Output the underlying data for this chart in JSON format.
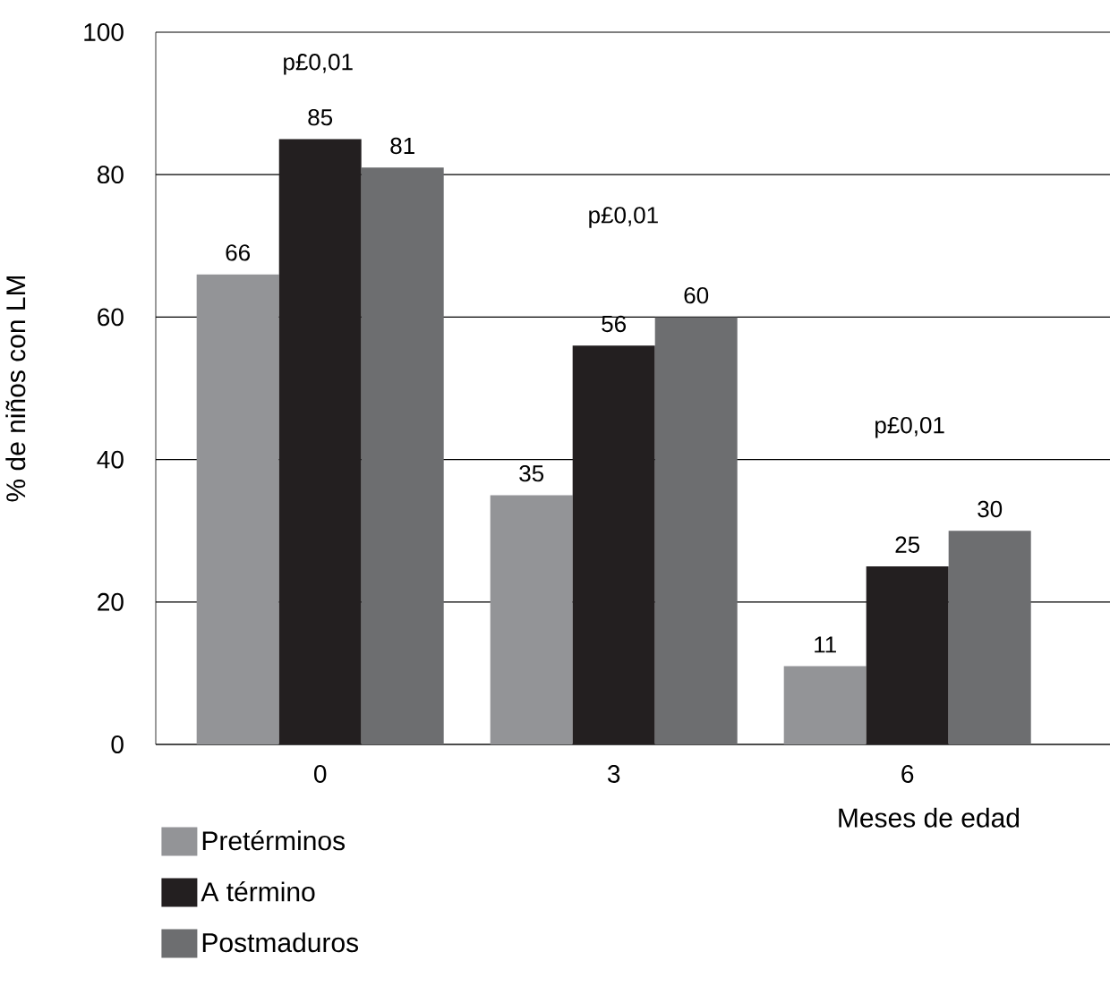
{
  "chart_data": {
    "type": "bar",
    "ylabel": "% de niños con LM",
    "xlabel": "Meses de edad",
    "categories": [
      "0",
      "3",
      "6"
    ],
    "series": [
      {
        "name": "Pretérminos",
        "color": "#939497",
        "values": [
          66,
          35,
          11
        ]
      },
      {
        "name": "A término",
        "color": "#231f20",
        "values": [
          85,
          56,
          25
        ]
      },
      {
        "name": "Postmaduros",
        "color": "#6d6e70",
        "values": [
          81,
          60,
          30
        ]
      }
    ],
    "ylim": [
      0,
      100
    ],
    "yticks": [
      0,
      20,
      40,
      60,
      80,
      100
    ],
    "grid": "y",
    "data_labels": true,
    "legend": "bottom left",
    "annotations": [
      "p£0,01",
      "p£0,01",
      "p£0,01"
    ]
  }
}
